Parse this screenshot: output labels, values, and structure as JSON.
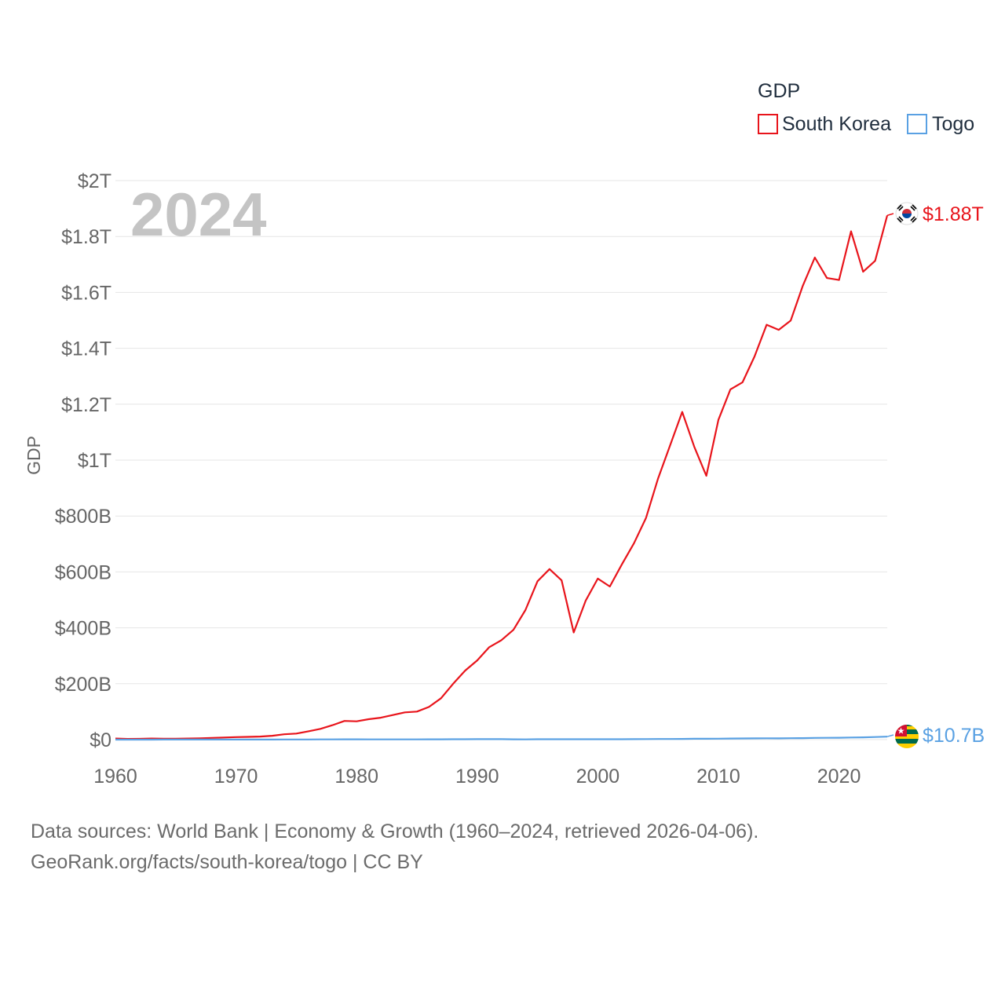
{
  "chart_data": {
    "type": "line",
    "legend_title": "GDP",
    "ylabel": "GDP",
    "xlabel": "",
    "year_label": "2024",
    "xlim": [
      1960,
      2024
    ],
    "ylim": [
      0,
      2000
    ],
    "value_unit": "billions USD",
    "x_ticks": [
      1960,
      1970,
      1980,
      1990,
      2000,
      2010,
      2020
    ],
    "y_ticks": [
      {
        "value": 0,
        "label": "$0"
      },
      {
        "value": 200,
        "label": "$200B"
      },
      {
        "value": 400,
        "label": "$400B"
      },
      {
        "value": 600,
        "label": "$600B"
      },
      {
        "value": 800,
        "label": "$800B"
      },
      {
        "value": 1000,
        "label": "$1T"
      },
      {
        "value": 1200,
        "label": "$1.2T"
      },
      {
        "value": 1400,
        "label": "$1.4T"
      },
      {
        "value": 1600,
        "label": "$1.6T"
      },
      {
        "value": 1800,
        "label": "$1.8T"
      },
      {
        "value": 2000,
        "label": "$2T"
      }
    ],
    "series": [
      {
        "name": "South Korea",
        "color": "#e8141b",
        "end_label": "$1.88T",
        "flag_icon": "south-korea-flag-icon",
        "x": [
          1960,
          1961,
          1962,
          1963,
          1964,
          1965,
          1966,
          1967,
          1968,
          1969,
          1970,
          1971,
          1972,
          1973,
          1974,
          1975,
          1976,
          1977,
          1978,
          1979,
          1980,
          1981,
          1982,
          1983,
          1984,
          1985,
          1986,
          1987,
          1988,
          1989,
          1990,
          1991,
          1992,
          1993,
          1994,
          1995,
          1996,
          1997,
          1998,
          1999,
          2000,
          2001,
          2002,
          2003,
          2004,
          2005,
          2006,
          2007,
          2008,
          2009,
          2010,
          2011,
          2012,
          2013,
          2014,
          2015,
          2016,
          2017,
          2018,
          2019,
          2020,
          2021,
          2022,
          2023,
          2024
        ],
        "values": [
          4,
          2.4,
          2.8,
          3.9,
          3.5,
          3.1,
          3.8,
          4.7,
          6.1,
          7.7,
          9,
          9.9,
          10.9,
          13.9,
          19.2,
          21.7,
          29.8,
          38.4,
          51.7,
          66.8,
          65.4,
          72.9,
          78.4,
          87.8,
          97.5,
          100.3,
          116.8,
          147.9,
          199.6,
          246.9,
          283.4,
          330.6,
          355.5,
          392.7,
          463.6,
          566.6,
          610.2,
          569.8,
          383.3,
          497.5,
          576.2,
          547.7,
          627.2,
          702.7,
          793.2,
          934.9,
          1053.2,
          1172.6,
          1047.3,
          943.9,
          1144.1,
          1253.2,
          1278.4,
          1370.8,
          1484.3,
          1466,
          1499.4,
          1623.9,
          1724.8,
          1651.4,
          1644.3,
          1818.4,
          1673.9,
          1712.8,
          1875.4
        ]
      },
      {
        "name": "Togo",
        "color": "#5aa1e3",
        "end_label": "$10.7B",
        "flag_icon": "togo-flag-icon",
        "x": [
          1960,
          1961,
          1962,
          1963,
          1964,
          1965,
          1966,
          1967,
          1968,
          1969,
          1970,
          1971,
          1972,
          1973,
          1974,
          1975,
          1976,
          1977,
          1978,
          1979,
          1980,
          1981,
          1982,
          1983,
          1984,
          1985,
          1986,
          1987,
          1988,
          1989,
          1990,
          1991,
          1992,
          1993,
          1994,
          1995,
          1996,
          1997,
          1998,
          1999,
          2000,
          2001,
          2002,
          2003,
          2004,
          2005,
          2006,
          2007,
          2008,
          2009,
          2010,
          2011,
          2012,
          2013,
          2014,
          2015,
          2016,
          2017,
          2018,
          2019,
          2020,
          2021,
          2022,
          2023,
          2024
        ],
        "values": [
          0.12,
          0.13,
          0.13,
          0.14,
          0.16,
          0.19,
          0.2,
          0.21,
          0.23,
          0.26,
          0.25,
          0.27,
          0.32,
          0.36,
          0.5,
          0.62,
          0.62,
          0.79,
          0.94,
          1.05,
          1.14,
          0.96,
          0.83,
          0.75,
          0.74,
          0.76,
          1.06,
          1.22,
          1.37,
          1.35,
          1.63,
          1.6,
          1.66,
          1.23,
          0.98,
          1.31,
          1.46,
          1.49,
          1.47,
          1.45,
          1.29,
          1.33,
          1.47,
          1.68,
          1.94,
          2.12,
          2.2,
          2.52,
          3.16,
          3.16,
          3.43,
          3.87,
          4.1,
          4.5,
          4.7,
          4.5,
          4.96,
          5.45,
          6.2,
          6.38,
          6.76,
          7.57,
          8.13,
          9.17,
          10.7
        ]
      }
    ],
    "legend": [
      {
        "name": "South Korea",
        "color": "#e8141b"
      },
      {
        "name": "Togo",
        "color": "#5aa1e3"
      }
    ]
  },
  "footer": {
    "line1": "Data sources: World Bank | Economy & Growth (1960–2024, retrieved 2026-04-06).",
    "line2": "GeoRank.org/facts/south-korea/togo | CC BY"
  }
}
